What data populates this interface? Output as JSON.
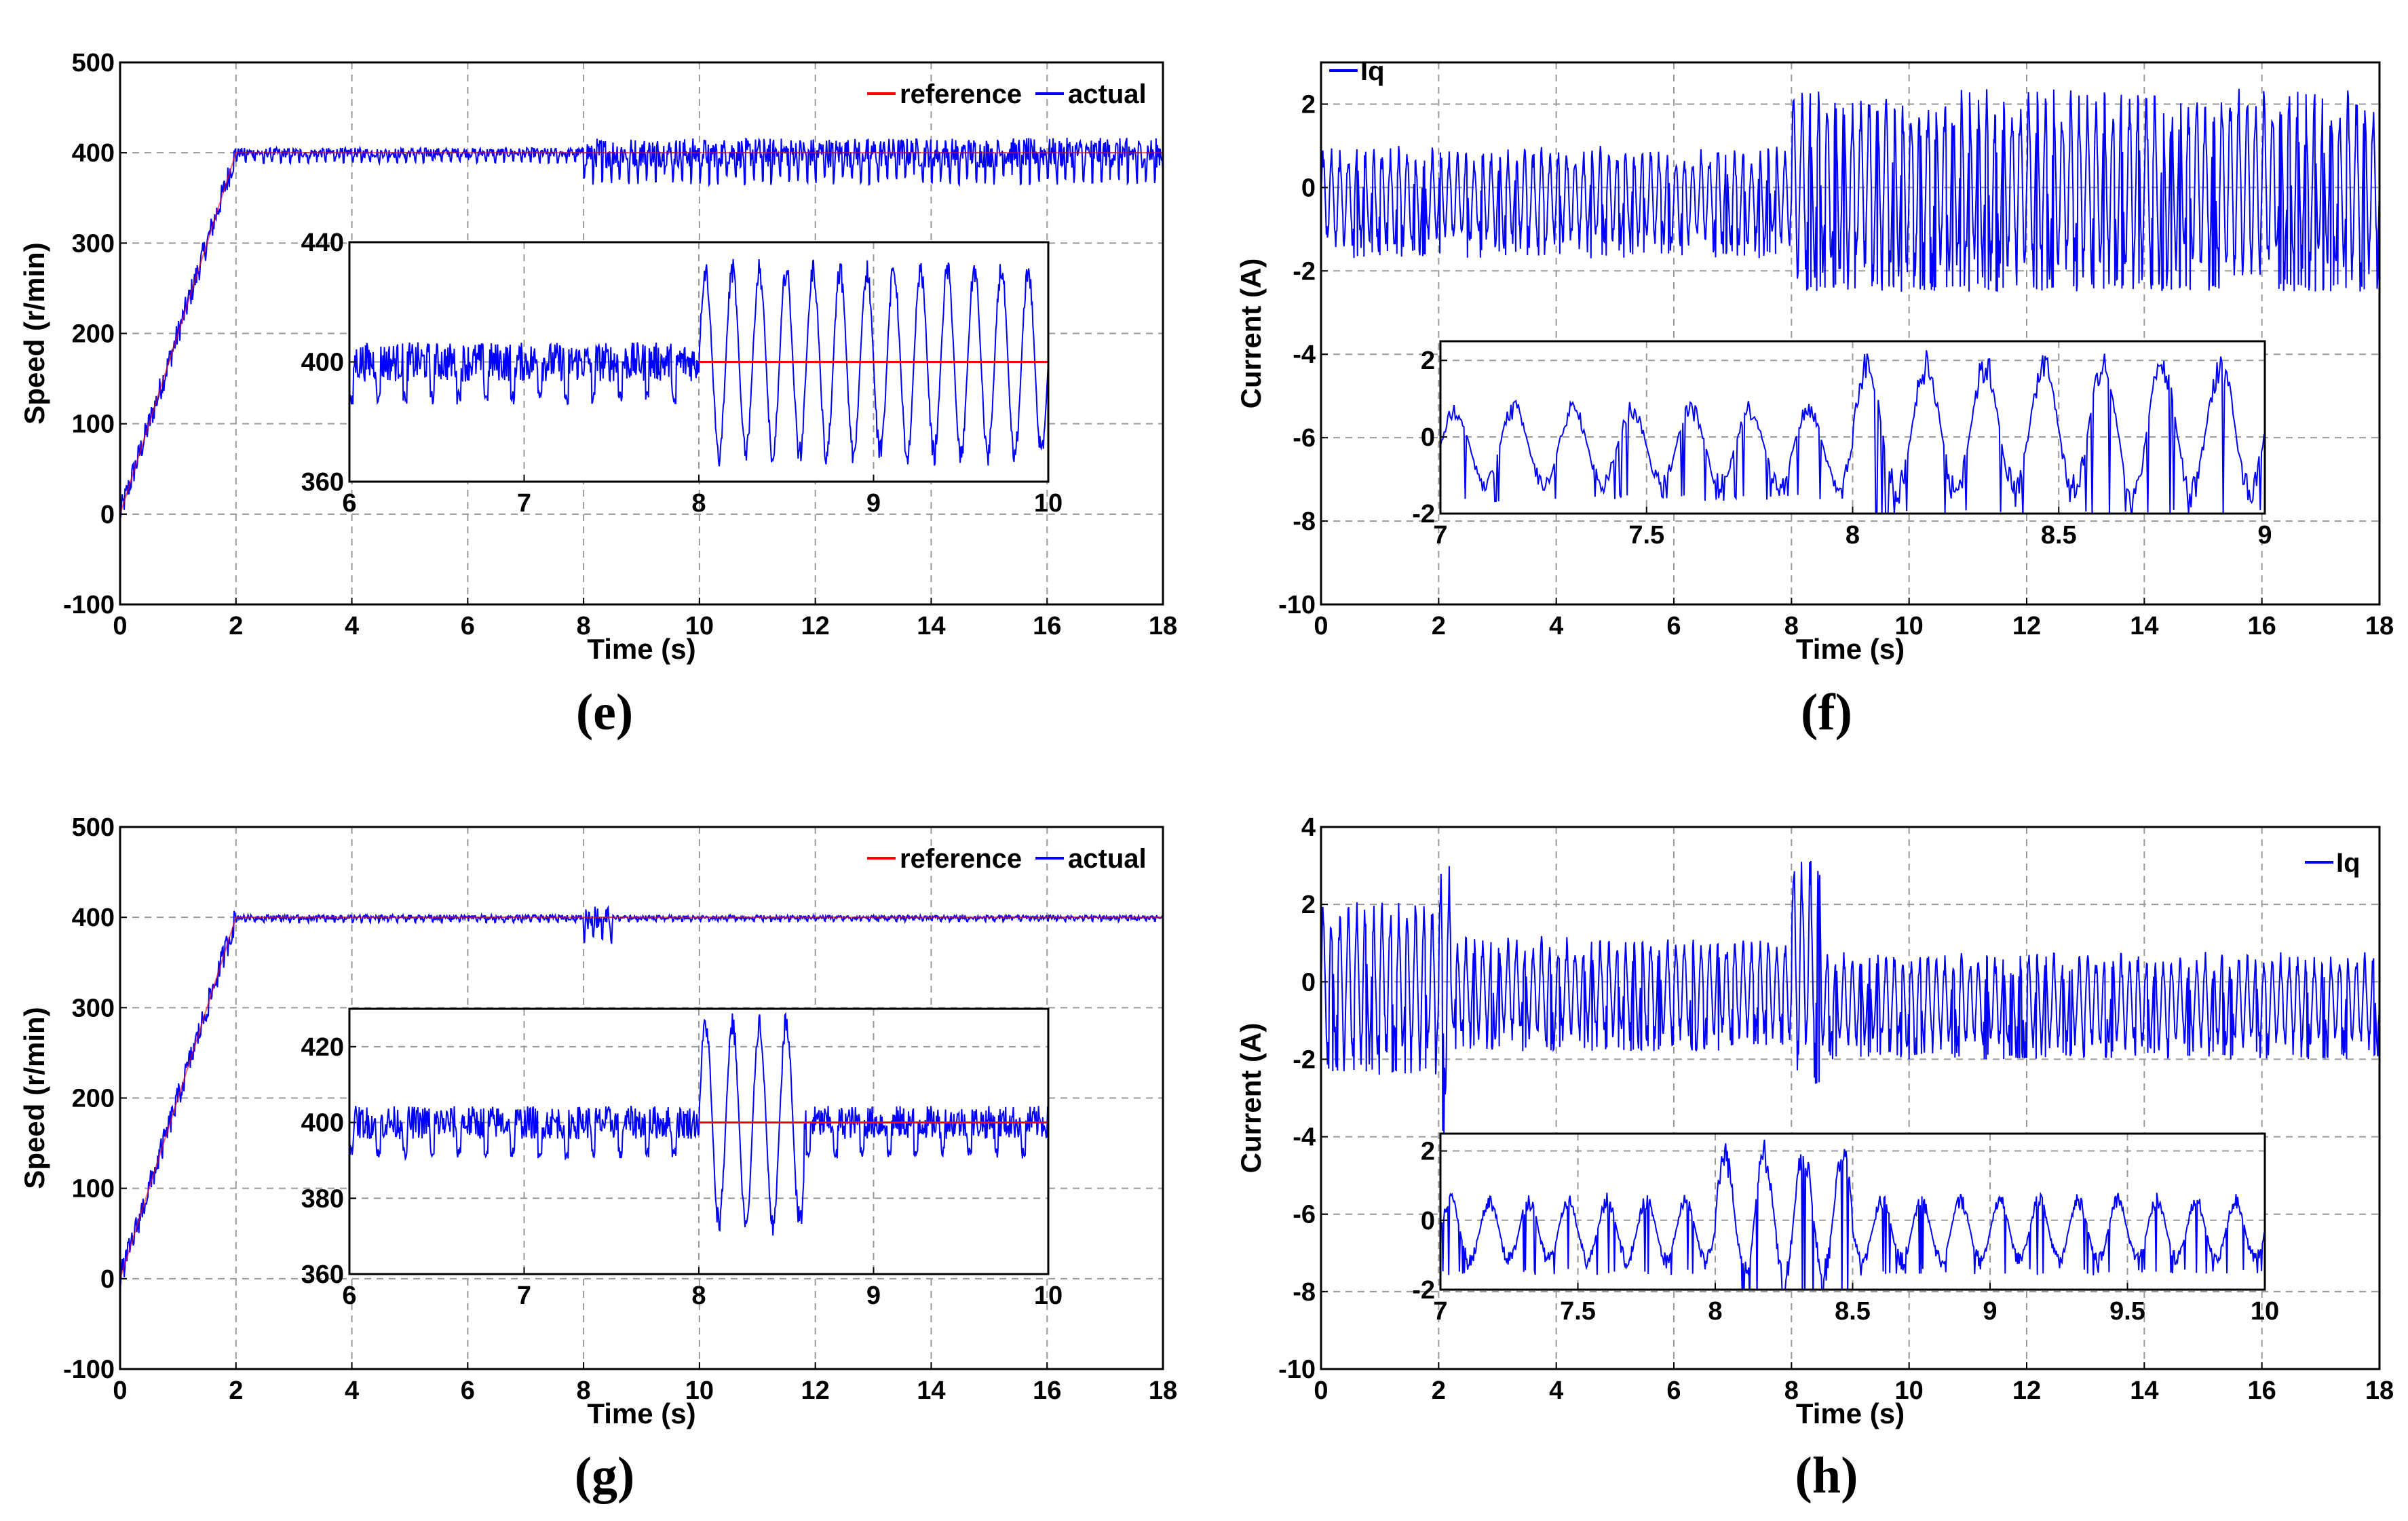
{
  "colors": {
    "actual": "#0000ff",
    "reference": "#ff0000",
    "grid": "#9a9a9a",
    "axis": "#000000"
  },
  "chart_data": [
    {
      "panel": "(e)",
      "type": "line",
      "xlabel": "Time (s)",
      "ylabel": "Speed (r/min)",
      "xlim": [
        0,
        18
      ],
      "ylim": [
        -100,
        500
      ],
      "xticks": [
        0,
        2,
        4,
        6,
        8,
        10,
        12,
        14,
        16,
        18
      ],
      "yticks": [
        -100,
        0,
        100,
        200,
        300,
        400,
        500
      ],
      "grid": true,
      "legend_position": "top-right",
      "legend": [
        "reference",
        "actual"
      ],
      "series": [
        {
          "name": "reference",
          "segments": [
            {
              "t0": 0,
              "t1": 2,
              "v0": 0,
              "v1": 400
            },
            {
              "t0": 2,
              "t1": 18,
              "v0": 400,
              "v1": 400
            }
          ]
        },
        {
          "name": "actual",
          "ramp_end": 2,
          "setpoint": 400,
          "periods": [
            {
              "t0": 2,
              "t1": 8,
              "amp": 10
            },
            {
              "t0": 8,
              "t1": 18,
              "amp": 30
            }
          ]
        }
      ],
      "inset": {
        "xlim": [
          6,
          10
        ],
        "ylim": [
          360,
          440
        ],
        "xticks": [
          6,
          7,
          8,
          9,
          10
        ],
        "yticks": [
          360,
          400,
          440
        ],
        "periods": [
          {
            "t0": 6,
            "t1": 8,
            "amp": 12,
            "kind": "ripple"
          },
          {
            "t0": 8,
            "t1": 10,
            "amp": 35,
            "kind": "osc"
          }
        ]
      }
    },
    {
      "panel": "(f)",
      "type": "line",
      "xlabel": "Time (s)",
      "ylabel": "Current (A)",
      "xlim": [
        0,
        18
      ],
      "ylim": [
        -10,
        3
      ],
      "xticks": [
        0,
        2,
        4,
        6,
        8,
        10,
        12,
        14,
        16,
        18
      ],
      "yticks": [
        -10,
        -8,
        -6,
        -4,
        -2,
        0,
        2
      ],
      "grid": true,
      "legend_position": "top-left",
      "legend": [
        "Iq"
      ],
      "series": [
        {
          "name": "Iq",
          "periods": [
            {
              "t0": 0,
              "t1": 8,
              "low": -1.5,
              "high": 1.0
            },
            {
              "t0": 8,
              "t1": 18,
              "low": -2.3,
              "high": 2.4
            }
          ]
        }
      ],
      "inset": {
        "xlim": [
          7,
          9
        ],
        "ylim": [
          -2,
          2.5
        ],
        "xticks": [
          7,
          7.5,
          8,
          8.5,
          9
        ],
        "yticks": [
          -2,
          0,
          2
        ],
        "periods": [
          {
            "t0": 7,
            "t1": 8,
            "low": -1.5,
            "high": 1.0
          },
          {
            "t0": 8,
            "t1": 9,
            "low": -1.9,
            "high": 2.3
          }
        ]
      }
    },
    {
      "panel": "(g)",
      "type": "line",
      "xlabel": "Time (s)",
      "ylabel": "Speed (r/min)",
      "xlim": [
        0,
        18
      ],
      "ylim": [
        -100,
        500
      ],
      "xticks": [
        0,
        2,
        4,
        6,
        8,
        10,
        12,
        14,
        16,
        18
      ],
      "yticks": [
        -100,
        0,
        100,
        200,
        300,
        400,
        500
      ],
      "grid": true,
      "legend_position": "top-right",
      "legend": [
        "reference",
        "actual"
      ],
      "series": [
        {
          "name": "reference",
          "segments": [
            {
              "t0": 0,
              "t1": 2,
              "v0": 0,
              "v1": 400
            },
            {
              "t0": 2,
              "t1": 18,
              "v0": 400,
              "v1": 400
            }
          ]
        },
        {
          "name": "actual",
          "ramp_end": 2,
          "setpoint": 400,
          "periods": [
            {
              "t0": 2,
              "t1": 8,
              "amp": 5
            },
            {
              "t0": 8,
              "t1": 8.5,
              "amp": 25
            },
            {
              "t0": 8.5,
              "t1": 18,
              "amp": 4
            }
          ]
        }
      ],
      "inset": {
        "xlim": [
          6,
          10
        ],
        "ylim": [
          360,
          430
        ],
        "xticks": [
          6,
          7,
          8,
          9,
          10
        ],
        "yticks": [
          360,
          380,
          400,
          420
        ],
        "periods": [
          {
            "t0": 6,
            "t1": 8,
            "amp": 8,
            "kind": "ripple"
          },
          {
            "t0": 8,
            "t1": 8.6,
            "amp": 30,
            "kind": "osc"
          },
          {
            "t0": 8.6,
            "t1": 10,
            "amp": 8,
            "kind": "ripple"
          }
        ]
      }
    },
    {
      "panel": "(h)",
      "type": "line",
      "xlabel": "Time (s)",
      "ylabel": "Current (A)",
      "xlim": [
        0,
        18
      ],
      "ylim": [
        -10,
        4
      ],
      "xticks": [
        0,
        2,
        4,
        6,
        8,
        10,
        12,
        14,
        16,
        18
      ],
      "yticks": [
        -10,
        -8,
        -6,
        -4,
        -2,
        0,
        2,
        4
      ],
      "grid": true,
      "legend_position": "top-right",
      "legend": [
        "Iq"
      ],
      "series": [
        {
          "name": "Iq",
          "periods": [
            {
              "t0": 0,
              "t1": 2,
              "low": -2.2,
              "high": 2.1
            },
            {
              "t0": 2,
              "t1": 2.2,
              "low": -3.8,
              "high": 3.5
            },
            {
              "t0": 2.2,
              "t1": 8,
              "low": -1.6,
              "high": 1.2
            },
            {
              "t0": 8,
              "t1": 8.5,
              "low": -2.5,
              "high": 3.5
            },
            {
              "t0": 8.5,
              "t1": 18,
              "low": -1.8,
              "high": 0.8
            }
          ]
        }
      ],
      "inset": {
        "xlim": [
          7,
          10
        ],
        "ylim": [
          -2,
          2.5
        ],
        "xticks": [
          7,
          7.5,
          8,
          8.5,
          9,
          9.5,
          10
        ],
        "yticks": [
          -2,
          0,
          2
        ],
        "periods": [
          {
            "t0": 7,
            "t1": 8,
            "low": -1.4,
            "high": 0.8
          },
          {
            "t0": 8,
            "t1": 8.5,
            "low": -2.2,
            "high": 2.4
          },
          {
            "t0": 8.5,
            "t1": 10,
            "low": -1.4,
            "high": 0.8
          }
        ]
      }
    }
  ]
}
